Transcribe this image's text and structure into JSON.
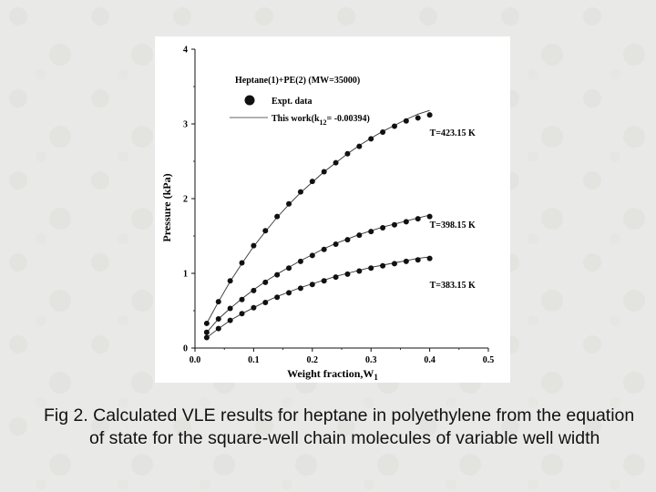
{
  "chart_data": {
    "type": "scatter",
    "title": "",
    "xlabel": "Weight fraction,W",
    "xlabel_subscript": "1",
    "ylabel": "Pressure (kPa)",
    "xlim": [
      0.0,
      0.5
    ],
    "ylim": [
      0,
      4
    ],
    "xticks": [
      "0.0",
      "0.1",
      "0.2",
      "0.3",
      "0.4",
      "0.5"
    ],
    "yticks": [
      "0",
      "1",
      "2",
      "3",
      "4"
    ],
    "grid": false,
    "legend": {
      "placement": "top-left",
      "system": "Heptane(1)+PE(2) (MW=35000)",
      "expt_label": "Expt. data",
      "model_label_prefix": "This work(k",
      "model_label_subscript": "12",
      "model_label_suffix": "= -0.00394)"
    },
    "series": [
      {
        "name": "T=423.15 K",
        "x": [
          0.02,
          0.04,
          0.06,
          0.08,
          0.1,
          0.12,
          0.14,
          0.16,
          0.18,
          0.2,
          0.22,
          0.24,
          0.26,
          0.28,
          0.3,
          0.32,
          0.34,
          0.36,
          0.38,
          0.4
        ],
        "expt": [
          0.33,
          0.62,
          0.9,
          1.14,
          1.37,
          1.57,
          1.76,
          1.93,
          2.09,
          2.23,
          2.36,
          2.48,
          2.6,
          2.7,
          2.8,
          2.89,
          2.97,
          3.04,
          3.08,
          3.12
        ],
        "model": [
          0.33,
          0.62,
          0.89,
          1.13,
          1.36,
          1.56,
          1.75,
          1.92,
          2.08,
          2.22,
          2.36,
          2.48,
          2.6,
          2.71,
          2.81,
          2.9,
          2.98,
          3.06,
          3.13,
          3.18
        ]
      },
      {
        "name": "T=398.15 K",
        "x": [
          0.02,
          0.04,
          0.06,
          0.08,
          0.1,
          0.12,
          0.14,
          0.16,
          0.18,
          0.2,
          0.22,
          0.24,
          0.26,
          0.28,
          0.3,
          0.32,
          0.34,
          0.36,
          0.38,
          0.4
        ],
        "expt": [
          0.21,
          0.39,
          0.53,
          0.65,
          0.77,
          0.88,
          0.98,
          1.07,
          1.16,
          1.24,
          1.32,
          1.39,
          1.45,
          1.51,
          1.56,
          1.61,
          1.65,
          1.69,
          1.73,
          1.76
        ],
        "model": [
          0.21,
          0.39,
          0.53,
          0.66,
          0.78,
          0.89,
          0.99,
          1.08,
          1.17,
          1.25,
          1.33,
          1.4,
          1.46,
          1.52,
          1.57,
          1.62,
          1.66,
          1.7,
          1.74,
          1.78
        ]
      },
      {
        "name": "T=383.15 K",
        "x": [
          0.02,
          0.04,
          0.06,
          0.08,
          0.1,
          0.12,
          0.14,
          0.16,
          0.18,
          0.2,
          0.22,
          0.24,
          0.26,
          0.28,
          0.3,
          0.32,
          0.34,
          0.36,
          0.38,
          0.4
        ],
        "expt": [
          0.14,
          0.26,
          0.37,
          0.46,
          0.54,
          0.61,
          0.68,
          0.74,
          0.8,
          0.85,
          0.9,
          0.95,
          0.99,
          1.03,
          1.07,
          1.1,
          1.13,
          1.16,
          1.18,
          1.2
        ],
        "model": [
          0.14,
          0.26,
          0.37,
          0.46,
          0.54,
          0.62,
          0.69,
          0.75,
          0.81,
          0.86,
          0.91,
          0.96,
          1.0,
          1.04,
          1.08,
          1.11,
          1.14,
          1.17,
          1.2,
          1.22
        ]
      }
    ]
  },
  "caption": {
    "line1": "Fig 2. Calculated VLE results for heptane in polyethylene from the equation",
    "line2": "of state for the square-well chain molecules of variable well width"
  },
  "colors": {
    "background": "#e9e9e7",
    "plot_background": "#ffffff",
    "ink": "#111111"
  }
}
